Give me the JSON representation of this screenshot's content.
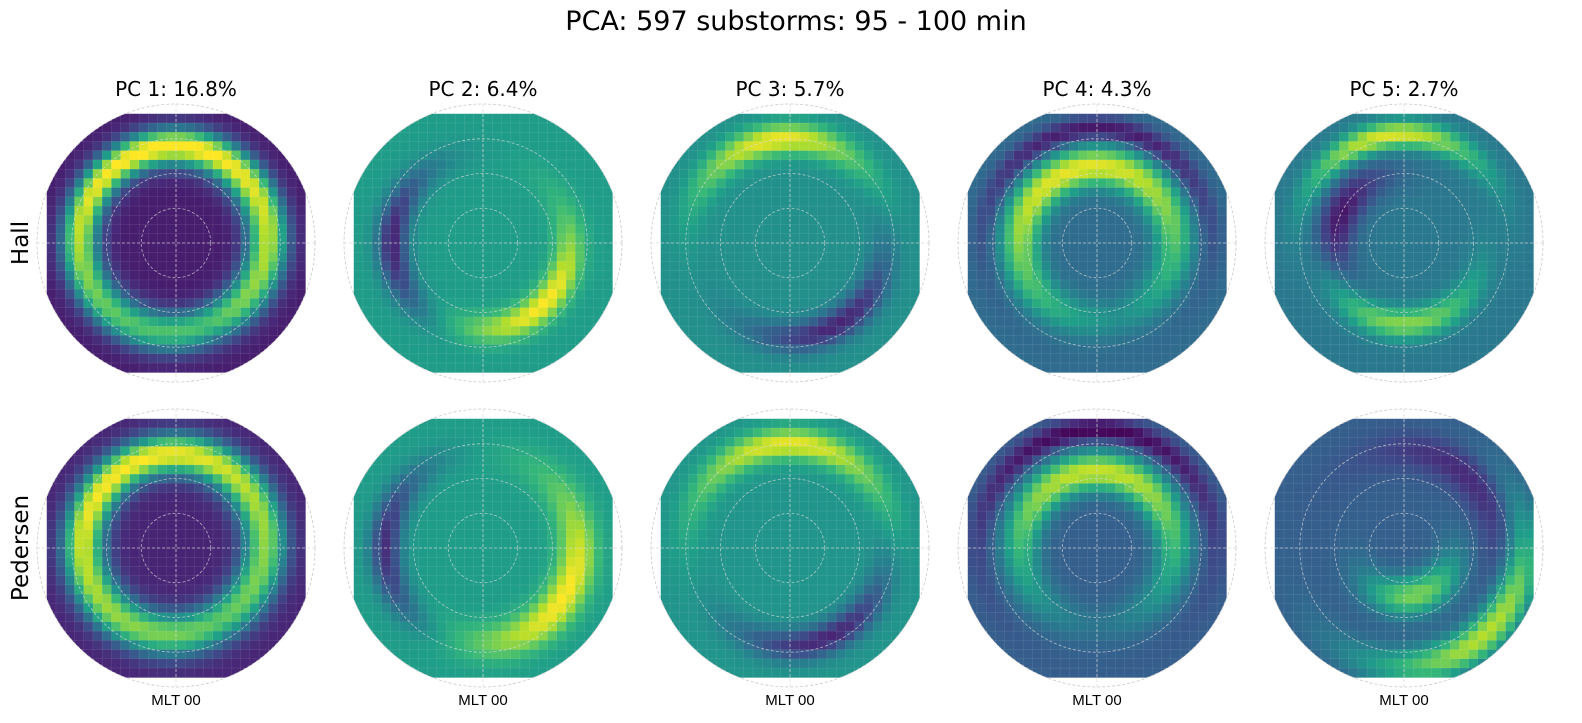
{
  "chart_data": {
    "type": "heatmap",
    "title": "PCA: 597 substorms: 95 - 100 min",
    "colormap": "viridis",
    "rows": [
      "Hall",
      "Pedersen"
    ],
    "columns": [
      {
        "label": "PC 1: 16.8%",
        "explained_variance_pct": 16.8
      },
      {
        "label": "PC 2: 6.4%",
        "explained_variance_pct": 6.4
      },
      {
        "label": "PC 3: 5.7%",
        "explained_variance_pct": 5.7
      },
      {
        "label": "PC 4: 4.3%",
        "explained_variance_pct": 4.3
      },
      {
        "label": "PC 5: 2.7%",
        "explained_variance_pct": 2.7
      }
    ],
    "bottom_label": "MLT 00",
    "grid": true,
    "panels": [
      {
        "row": "Hall",
        "pc": 1,
        "base": 0.08,
        "features": [
          {
            "amp": 0.92,
            "mlt_center": 13.5,
            "mlt_width": 7,
            "rho": 0.7,
            "rho_width": 0.09
          },
          {
            "amp": 0.52,
            "mlt_center": 3,
            "mlt_width": 5,
            "rho": 0.6,
            "rho_width": 0.09
          }
        ]
      },
      {
        "row": "Hall",
        "pc": 2,
        "base": 0.55,
        "features": [
          {
            "amp": 0.45,
            "mlt_center": 3,
            "mlt_width": 3,
            "rho": 0.62,
            "rho_width": 0.08
          },
          {
            "amp": -0.45,
            "mlt_center": 18,
            "mlt_width": 2.5,
            "rho": 0.65,
            "rho_width": 0.08
          }
        ]
      },
      {
        "row": "Hall",
        "pc": 3,
        "base": 0.5,
        "features": [
          {
            "amp": 0.48,
            "mlt_center": 12.5,
            "mlt_width": 2.5,
            "rho": 0.75,
            "rho_width": 0.08
          },
          {
            "amp": -0.4,
            "mlt_center": 2,
            "mlt_width": 2.5,
            "rho": 0.68,
            "rho_width": 0.08
          }
        ]
      },
      {
        "row": "Hall",
        "pc": 4,
        "base": 0.35,
        "features": [
          {
            "amp": 0.62,
            "mlt_center": 13,
            "mlt_width": 7,
            "rho": 0.55,
            "rho_width": 0.1
          },
          {
            "amp": -0.3,
            "mlt_center": 12,
            "mlt_width": 4,
            "rho": 0.82,
            "rho_width": 0.06
          }
        ]
      },
      {
        "row": "Hall",
        "pc": 5,
        "base": 0.4,
        "features": [
          {
            "amp": 0.55,
            "mlt_center": 12.5,
            "mlt_width": 2.5,
            "rho": 0.78,
            "rho_width": 0.07
          },
          {
            "amp": -0.35,
            "mlt_center": 16.5,
            "mlt_width": 2.5,
            "rho": 0.5,
            "rho_width": 0.1
          },
          {
            "amp": 0.42,
            "mlt_center": 0,
            "mlt_width": 3,
            "rho": 0.58,
            "rho_width": 0.08
          }
        ]
      },
      {
        "row": "Pedersen",
        "pc": 1,
        "base": 0.1,
        "features": [
          {
            "amp": 0.88,
            "mlt_center": 14,
            "mlt_width": 7,
            "rho": 0.68,
            "rho_width": 0.1
          },
          {
            "amp": 0.5,
            "mlt_center": 2,
            "mlt_width": 5,
            "rho": 0.58,
            "rho_width": 0.1
          }
        ]
      },
      {
        "row": "Pedersen",
        "pc": 2,
        "base": 0.55,
        "features": [
          {
            "amp": 0.45,
            "mlt_center": 4,
            "mlt_width": 3.5,
            "rho": 0.68,
            "rho_width": 0.1
          },
          {
            "amp": -0.42,
            "mlt_center": 18,
            "mlt_width": 2.5,
            "rho": 0.7,
            "rho_width": 0.08
          }
        ]
      },
      {
        "row": "Pedersen",
        "pc": 3,
        "base": 0.52,
        "features": [
          {
            "amp": 0.45,
            "mlt_center": 12,
            "mlt_width": 3,
            "rho": 0.75,
            "rho_width": 0.08
          },
          {
            "amp": -0.42,
            "mlt_center": 1.5,
            "mlt_width": 2.5,
            "rho": 0.7,
            "rho_width": 0.08
          }
        ]
      },
      {
        "row": "Pedersen",
        "pc": 4,
        "base": 0.3,
        "features": [
          {
            "amp": 0.62,
            "mlt_center": 12,
            "mlt_width": 6,
            "rho": 0.55,
            "rho_width": 0.1
          },
          {
            "amp": -0.3,
            "mlt_center": 12,
            "mlt_width": 4,
            "rho": 0.85,
            "rho_width": 0.06
          }
        ]
      },
      {
        "row": "Pedersen",
        "pc": 5,
        "base": 0.3,
        "features": [
          {
            "amp": 0.6,
            "mlt_center": 3,
            "mlt_width": 3,
            "rho": 0.85,
            "rho_width": 0.1
          },
          {
            "amp": 0.5,
            "mlt_center": 1,
            "mlt_width": 3,
            "rho": 0.35,
            "rho_width": 0.1
          },
          {
            "amp": -0.2,
            "mlt_center": 9,
            "mlt_width": 3,
            "rho": 0.7,
            "rho_width": 0.1
          }
        ]
      }
    ]
  }
}
